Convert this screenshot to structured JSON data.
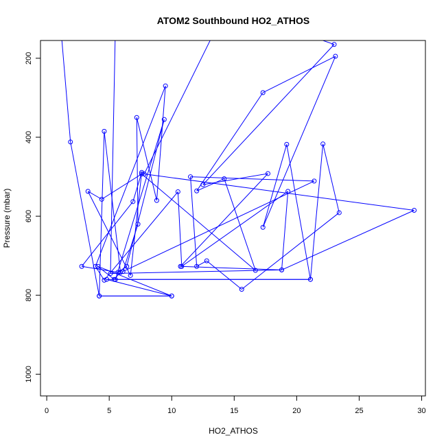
{
  "chart_data": {
    "type": "line",
    "title": "ATOM2 Southbound HO2_ATHOS",
    "xlabel": "HO2_ATHOS",
    "ylabel": "Pressure (mbar)",
    "xlim": [
      -0.5,
      30.3
    ],
    "ylim": [
      1055,
      155
    ],
    "y_reversed": true,
    "x_ticks": [
      0,
      5,
      10,
      15,
      20,
      25,
      30
    ],
    "y_ticks": [
      200,
      400,
      600,
      800,
      1000
    ],
    "grid": false,
    "legend": "none",
    "line_color": "#0000ff",
    "marker": "open-circle",
    "series": [
      {
        "x": [
          1.2,
          1.9,
          4.2,
          10.0,
          4.2,
          4.6,
          5.9,
          5.4,
          4.1,
          10.0,
          4.8,
          21.1,
          5.5,
          9.4,
          6.4,
          5.7,
          2.8,
          6.9,
          7.6,
          6.7,
          3.3,
          4.4,
          7.6,
          16.7,
          14.2,
          12.0,
          17.3,
          23.1,
          17.3,
          19.2,
          21.1,
          22.1,
          23.4,
          15.6,
          12.8,
          12.0,
          11.5,
          21.4,
          6.1,
          7.3,
          7.2,
          8.8,
          9.5,
          3.9,
          4.6,
          10.5,
          10.8,
          19.3,
          18.8,
          10.7,
          17.7,
          12.5,
          23.0,
          14.4,
          7.8,
          29.4,
          18.8,
          5.1,
          5.5
        ],
        "y": [
          150,
          412,
          802,
          802,
          802,
          385,
          742,
          760,
          727,
          802,
          760,
          760,
          760,
          355,
          727,
          742,
          727,
          563,
          489,
          750,
          537,
          557,
          493,
          737,
          505,
          536,
          287,
          195,
          628,
          418,
          760,
          417,
          591,
          785,
          713,
          727,
          500,
          511,
          740,
          620,
          350,
          560,
          270,
          727,
          762,
          538,
          727,
          537,
          736,
          727,
          492,
          520,
          165,
          70,
          493,
          585,
          736,
          745,
          110
        ]
      }
    ]
  }
}
